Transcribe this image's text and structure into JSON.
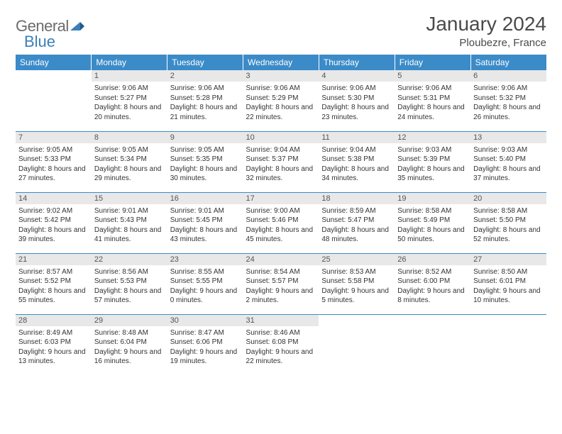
{
  "brand": {
    "part1": "General",
    "part2": "Blue"
  },
  "title": "January 2024",
  "location": "Ploubezre, France",
  "colors": {
    "header_bg": "#3b8bc8",
    "header_fg": "#ffffff",
    "daynum_bg": "#e8e8e8",
    "border": "#3b8bc8",
    "text": "#333333",
    "logo_gray": "#6b6b6b",
    "logo_blue": "#3b7fb8"
  },
  "day_headers": [
    "Sunday",
    "Monday",
    "Tuesday",
    "Wednesday",
    "Thursday",
    "Friday",
    "Saturday"
  ],
  "weeks": [
    [
      null,
      {
        "n": "1",
        "sr": "9:06 AM",
        "ss": "5:27 PM",
        "dl": "8 hours and 20 minutes."
      },
      {
        "n": "2",
        "sr": "9:06 AM",
        "ss": "5:28 PM",
        "dl": "8 hours and 21 minutes."
      },
      {
        "n": "3",
        "sr": "9:06 AM",
        "ss": "5:29 PM",
        "dl": "8 hours and 22 minutes."
      },
      {
        "n": "4",
        "sr": "9:06 AM",
        "ss": "5:30 PM",
        "dl": "8 hours and 23 minutes."
      },
      {
        "n": "5",
        "sr": "9:06 AM",
        "ss": "5:31 PM",
        "dl": "8 hours and 24 minutes."
      },
      {
        "n": "6",
        "sr": "9:06 AM",
        "ss": "5:32 PM",
        "dl": "8 hours and 26 minutes."
      }
    ],
    [
      {
        "n": "7",
        "sr": "9:05 AM",
        "ss": "5:33 PM",
        "dl": "8 hours and 27 minutes."
      },
      {
        "n": "8",
        "sr": "9:05 AM",
        "ss": "5:34 PM",
        "dl": "8 hours and 29 minutes."
      },
      {
        "n": "9",
        "sr": "9:05 AM",
        "ss": "5:35 PM",
        "dl": "8 hours and 30 minutes."
      },
      {
        "n": "10",
        "sr": "9:04 AM",
        "ss": "5:37 PM",
        "dl": "8 hours and 32 minutes."
      },
      {
        "n": "11",
        "sr": "9:04 AM",
        "ss": "5:38 PM",
        "dl": "8 hours and 34 minutes."
      },
      {
        "n": "12",
        "sr": "9:03 AM",
        "ss": "5:39 PM",
        "dl": "8 hours and 35 minutes."
      },
      {
        "n": "13",
        "sr": "9:03 AM",
        "ss": "5:40 PM",
        "dl": "8 hours and 37 minutes."
      }
    ],
    [
      {
        "n": "14",
        "sr": "9:02 AM",
        "ss": "5:42 PM",
        "dl": "8 hours and 39 minutes."
      },
      {
        "n": "15",
        "sr": "9:01 AM",
        "ss": "5:43 PM",
        "dl": "8 hours and 41 minutes."
      },
      {
        "n": "16",
        "sr": "9:01 AM",
        "ss": "5:45 PM",
        "dl": "8 hours and 43 minutes."
      },
      {
        "n": "17",
        "sr": "9:00 AM",
        "ss": "5:46 PM",
        "dl": "8 hours and 45 minutes."
      },
      {
        "n": "18",
        "sr": "8:59 AM",
        "ss": "5:47 PM",
        "dl": "8 hours and 48 minutes."
      },
      {
        "n": "19",
        "sr": "8:58 AM",
        "ss": "5:49 PM",
        "dl": "8 hours and 50 minutes."
      },
      {
        "n": "20",
        "sr": "8:58 AM",
        "ss": "5:50 PM",
        "dl": "8 hours and 52 minutes."
      }
    ],
    [
      {
        "n": "21",
        "sr": "8:57 AM",
        "ss": "5:52 PM",
        "dl": "8 hours and 55 minutes."
      },
      {
        "n": "22",
        "sr": "8:56 AM",
        "ss": "5:53 PM",
        "dl": "8 hours and 57 minutes."
      },
      {
        "n": "23",
        "sr": "8:55 AM",
        "ss": "5:55 PM",
        "dl": "9 hours and 0 minutes."
      },
      {
        "n": "24",
        "sr": "8:54 AM",
        "ss": "5:57 PM",
        "dl": "9 hours and 2 minutes."
      },
      {
        "n": "25",
        "sr": "8:53 AM",
        "ss": "5:58 PM",
        "dl": "9 hours and 5 minutes."
      },
      {
        "n": "26",
        "sr": "8:52 AM",
        "ss": "6:00 PM",
        "dl": "9 hours and 8 minutes."
      },
      {
        "n": "27",
        "sr": "8:50 AM",
        "ss": "6:01 PM",
        "dl": "9 hours and 10 minutes."
      }
    ],
    [
      {
        "n": "28",
        "sr": "8:49 AM",
        "ss": "6:03 PM",
        "dl": "9 hours and 13 minutes."
      },
      {
        "n": "29",
        "sr": "8:48 AM",
        "ss": "6:04 PM",
        "dl": "9 hours and 16 minutes."
      },
      {
        "n": "30",
        "sr": "8:47 AM",
        "ss": "6:06 PM",
        "dl": "9 hours and 19 minutes."
      },
      {
        "n": "31",
        "sr": "8:46 AM",
        "ss": "6:08 PM",
        "dl": "9 hours and 22 minutes."
      },
      null,
      null,
      null
    ]
  ],
  "labels": {
    "sunrise": "Sunrise: ",
    "sunset": "Sunset: ",
    "daylight": "Daylight: "
  }
}
